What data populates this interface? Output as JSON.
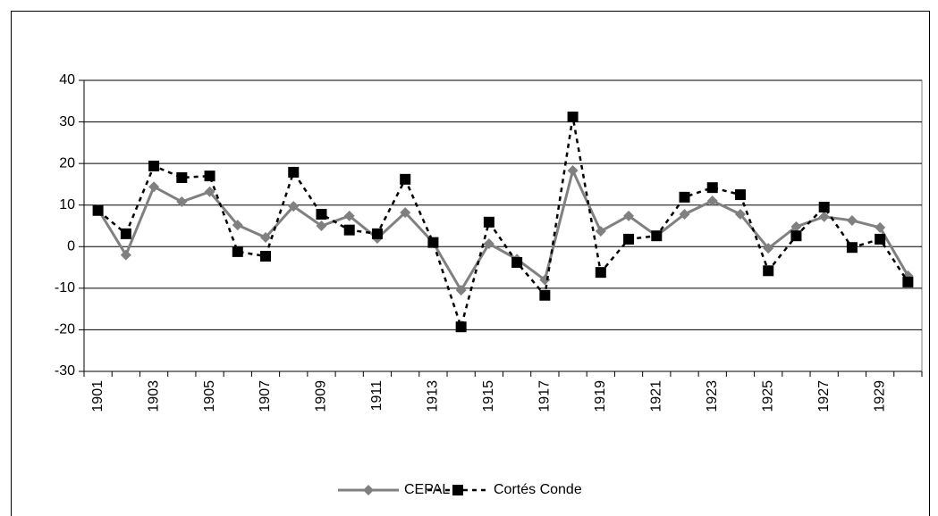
{
  "chart_data": {
    "type": "line",
    "categories": [
      "1901",
      null,
      "1903",
      null,
      "1905",
      null,
      "1907",
      null,
      "1909",
      null,
      "1911",
      null,
      "1913",
      null,
      "1915",
      null,
      "1917",
      null,
      "1919",
      null,
      "1921",
      null,
      "1923",
      null,
      "1925",
      null,
      "1927",
      null,
      "1929",
      null
    ],
    "series": [
      {
        "name": "CEPAL",
        "color": "#808080",
        "dash": false,
        "marker": "diamond",
        "values": [
          9,
          -2,
          14.4,
          10.8,
          13.2,
          5.2,
          2.2,
          9.7,
          5,
          7.4,
          2,
          8.2,
          1,
          -10.5,
          0.7,
          -3,
          -8,
          18.3,
          3.7,
          7.4,
          2.6,
          7.8,
          11,
          7.8,
          -0.4,
          4.8,
          7.2,
          6.3,
          4.6,
          -7
        ]
      },
      {
        "name": "Cortés Conde",
        "color": "#000000",
        "dash": true,
        "marker": "square",
        "values": [
          8.7,
          3.1,
          19.4,
          16.6,
          17,
          -1.2,
          -2.3,
          17.9,
          7.8,
          4,
          3.1,
          16.2,
          1,
          -19.3,
          5.9,
          -3.8,
          -11.7,
          31.2,
          -6.2,
          1.8,
          2.6,
          11.9,
          14.2,
          12.5,
          -5.8,
          2.6,
          9.5,
          -0.2,
          1.8,
          -8.5
        ]
      }
    ],
    "ylim": [
      -30,
      40
    ],
    "yticks": [
      -30,
      -20,
      -10,
      0,
      10,
      20,
      30,
      40
    ],
    "grid": true,
    "legend": "bottom"
  }
}
